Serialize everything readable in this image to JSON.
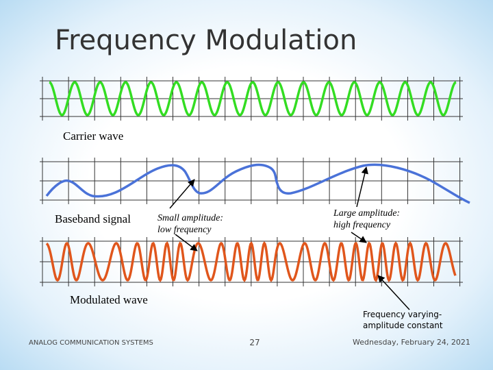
{
  "title": "Frequency Modulation",
  "labels": {
    "carrier": "Carrier wave",
    "baseband": "Baseband signal",
    "modulated": "Modulated wave"
  },
  "annotations": {
    "small": [
      "Small amplitude:",
      "low frequency"
    ],
    "large": [
      "Large amplitude:",
      "high frequency"
    ],
    "freq": [
      "Frequency varying-",
      "amplitude constant"
    ]
  },
  "footer": {
    "left": "ANALOG COMMUNICATION SYSTEMS",
    "page": "27",
    "date": "Wednesday, February 24, 2021"
  }
}
